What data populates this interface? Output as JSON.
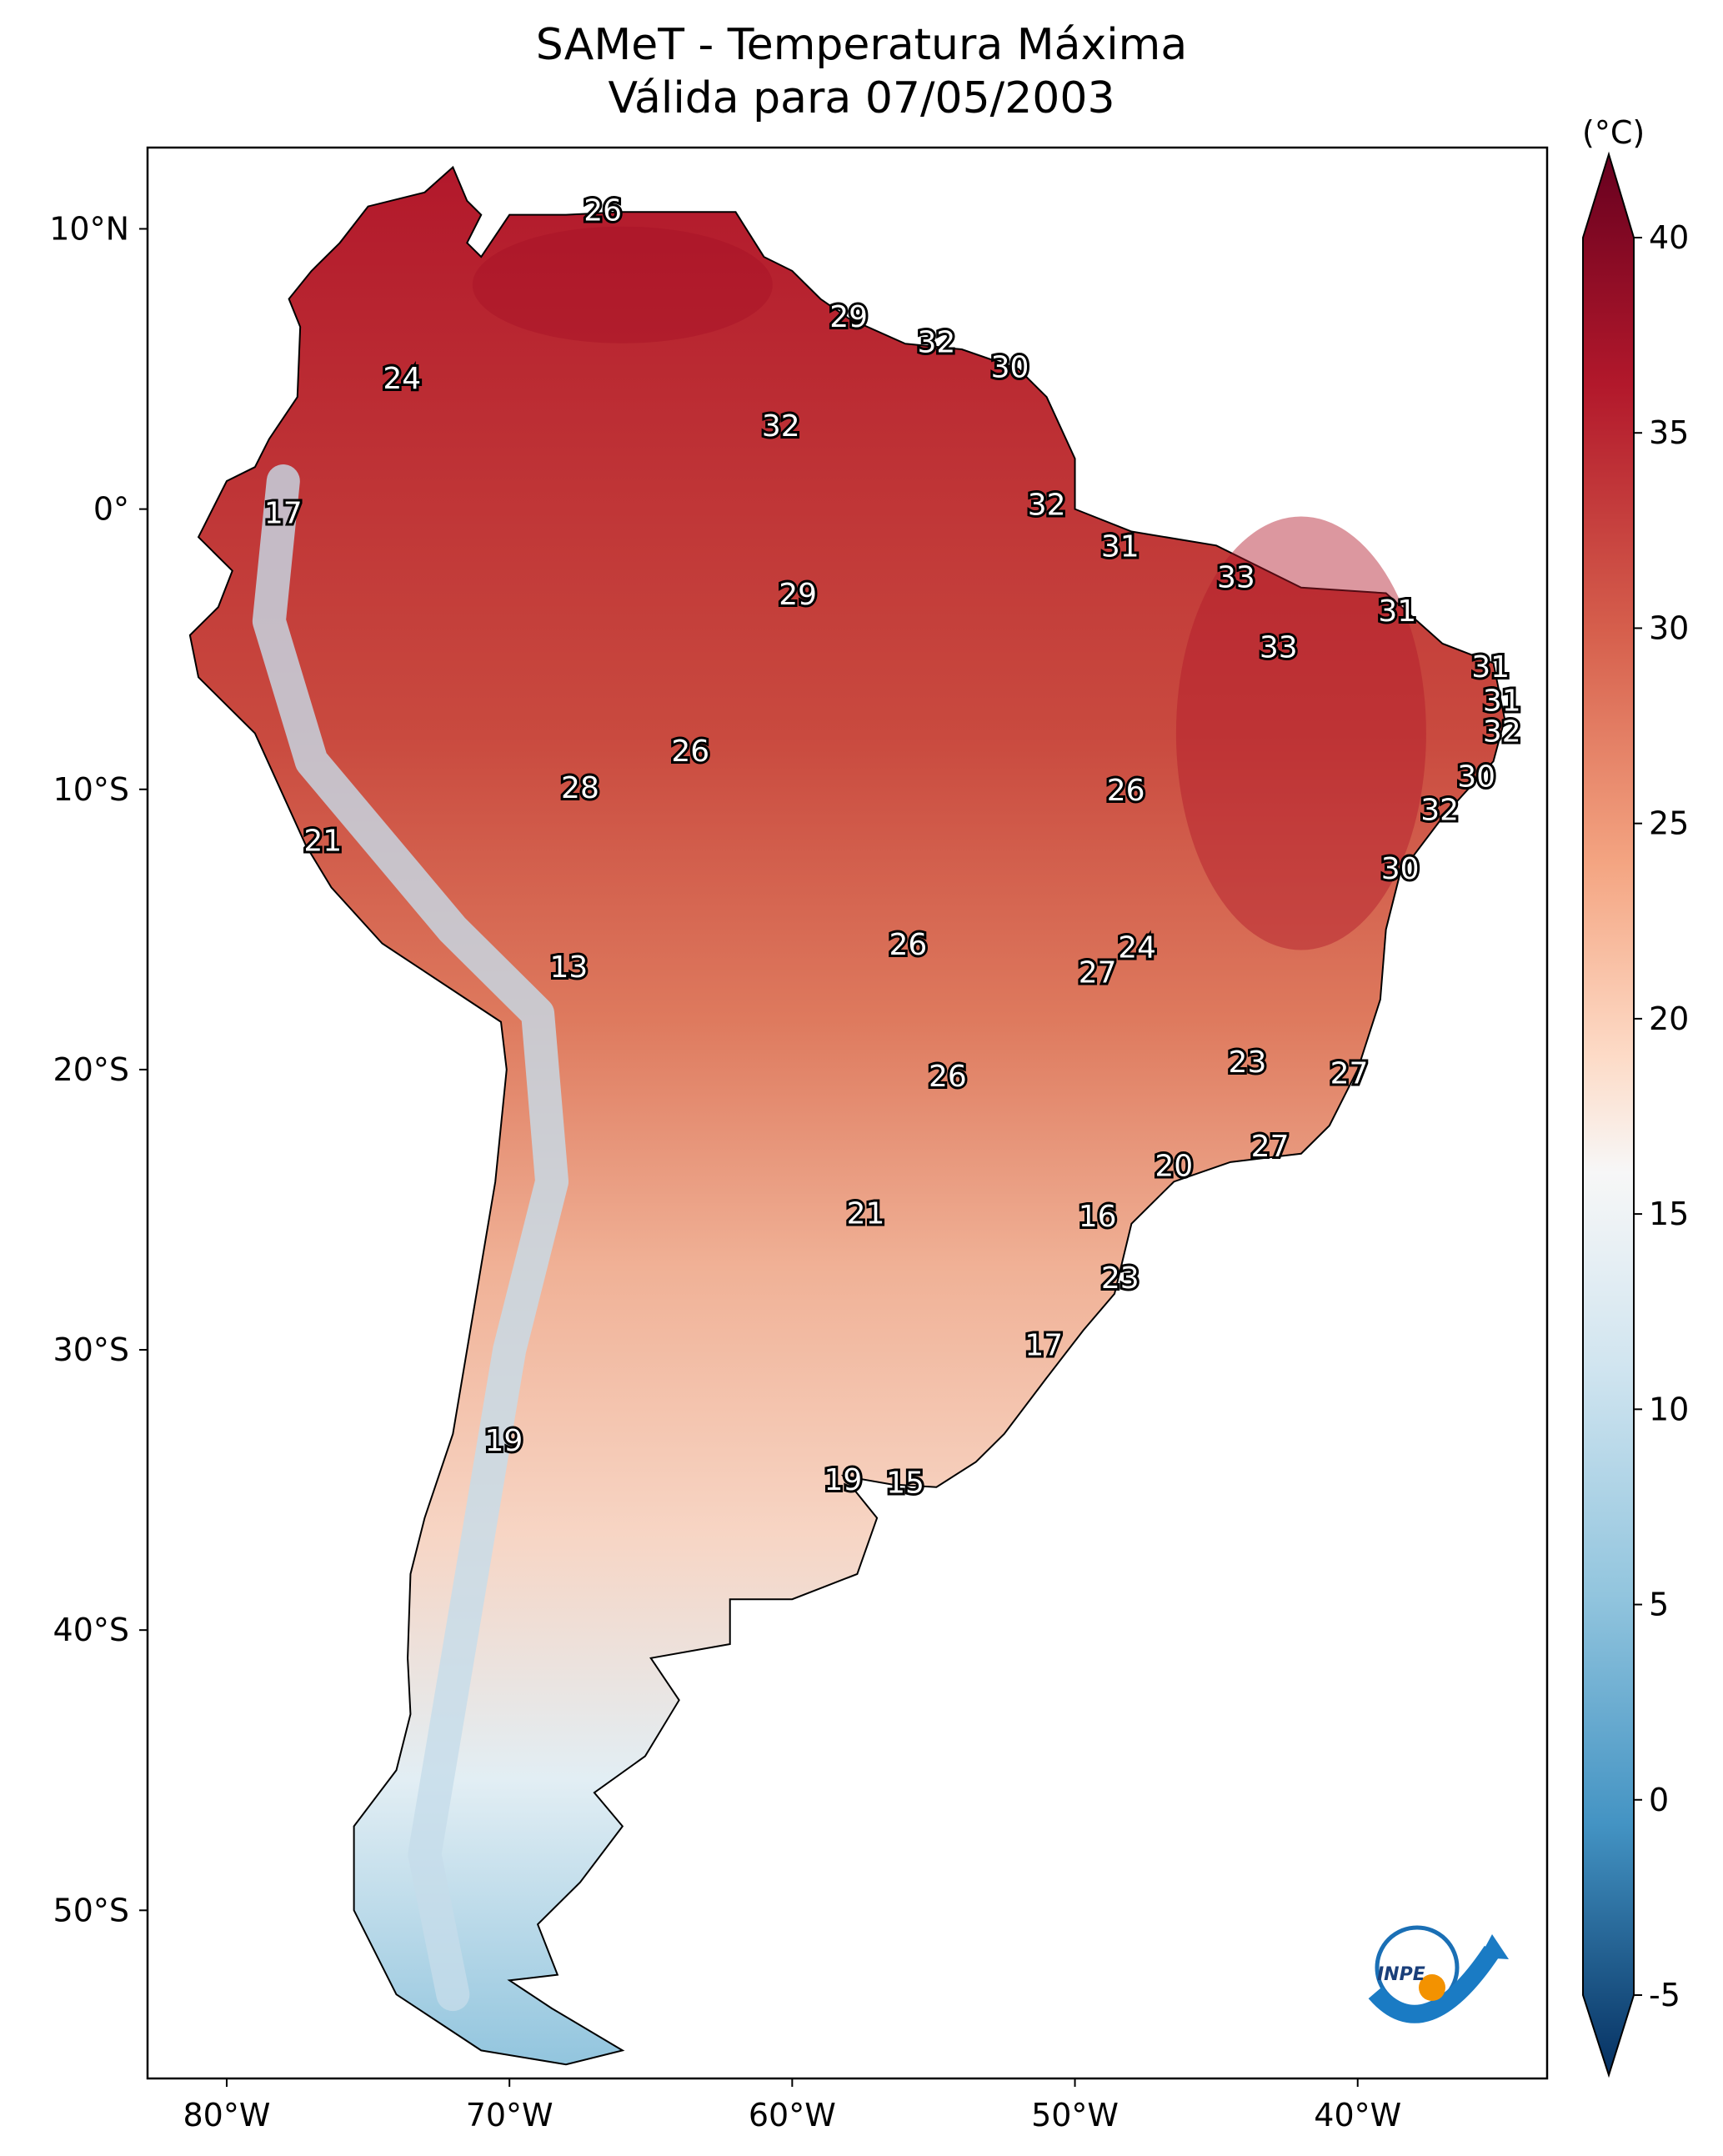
{
  "chart_data": {
    "type": "heatmap",
    "title": "SAMeT - Temperatura Máxima",
    "subtitle": "Válida para 07/05/2003",
    "colorbar_label": "(°C)",
    "colorbar_ticks": [
      "40",
      "35",
      "30",
      "25",
      "20",
      "15",
      "10",
      "5",
      "0",
      "-5"
    ],
    "colorbar_range": [
      -5,
      40
    ],
    "colormap": "RdBu_r",
    "lon_range": [
      -82.8,
      -33.3
    ],
    "lat_range": [
      -56,
      12.9
    ],
    "x_ticks": [
      {
        "lon": -80,
        "label": "80°W"
      },
      {
        "lon": -70,
        "label": "70°W"
      },
      {
        "lon": -60,
        "label": "60°W"
      },
      {
        "lon": -50,
        "label": "50°W"
      },
      {
        "lon": -40,
        "label": "40°W"
      }
    ],
    "y_ticks": [
      {
        "lat": 10,
        "label": "10°N"
      },
      {
        "lat": 0,
        "label": "0°"
      },
      {
        "lat": -10,
        "label": "10°S"
      },
      {
        "lat": -20,
        "label": "20°S"
      },
      {
        "lat": -30,
        "label": "30°S"
      },
      {
        "lat": -40,
        "label": "40°S"
      },
      {
        "lat": -50,
        "label": "50°S"
      }
    ],
    "annotations": [
      {
        "lon": -66.7,
        "lat": 10.6,
        "label": "26"
      },
      {
        "lon": -58.0,
        "lat": 6.8,
        "label": "29"
      },
      {
        "lon": -54.9,
        "lat": 5.9,
        "label": "32"
      },
      {
        "lon": -52.3,
        "lat": 5.0,
        "label": "30"
      },
      {
        "lon": -73.8,
        "lat": 4.6,
        "label": "24"
      },
      {
        "lon": -60.4,
        "lat": 2.9,
        "label": "32"
      },
      {
        "lon": -78.0,
        "lat": -0.2,
        "label": "17"
      },
      {
        "lon": -51.0,
        "lat": 0.1,
        "label": "32"
      },
      {
        "lon": -48.4,
        "lat": -1.4,
        "label": "31"
      },
      {
        "lon": -44.3,
        "lat": -2.5,
        "label": "33"
      },
      {
        "lon": -59.8,
        "lat": -3.1,
        "label": "29"
      },
      {
        "lon": -38.6,
        "lat": -3.7,
        "label": "31"
      },
      {
        "lon": -42.8,
        "lat": -5.0,
        "label": "33"
      },
      {
        "lon": -35.3,
        "lat": -5.7,
        "label": "31"
      },
      {
        "lon": -34.9,
        "lat": -6.9,
        "label": "31"
      },
      {
        "lon": -34.9,
        "lat": -8.0,
        "label": "32"
      },
      {
        "lon": -63.6,
        "lat": -8.7,
        "label": "26"
      },
      {
        "lon": -35.8,
        "lat": -9.6,
        "label": "30"
      },
      {
        "lon": -48.2,
        "lat": -10.1,
        "label": "26"
      },
      {
        "lon": -67.5,
        "lat": -10.0,
        "label": "28"
      },
      {
        "lon": -37.1,
        "lat": -10.8,
        "label": "32"
      },
      {
        "lon": -76.6,
        "lat": -11.9,
        "label": "21"
      },
      {
        "lon": -38.5,
        "lat": -12.9,
        "label": "30"
      },
      {
        "lon": -55.9,
        "lat": -15.6,
        "label": "26"
      },
      {
        "lon": -47.8,
        "lat": -15.7,
        "label": "24"
      },
      {
        "lon": -67.9,
        "lat": -16.4,
        "label": "13"
      },
      {
        "lon": -49.2,
        "lat": -16.6,
        "label": "27"
      },
      {
        "lon": -43.9,
        "lat": -19.8,
        "label": "23"
      },
      {
        "lon": -40.3,
        "lat": -20.2,
        "label": "27"
      },
      {
        "lon": -54.5,
        "lat": -20.3,
        "label": "26"
      },
      {
        "lon": -46.5,
        "lat": -23.5,
        "label": "20"
      },
      {
        "lon": -43.1,
        "lat": -22.8,
        "label": "27"
      },
      {
        "lon": -57.4,
        "lat": -25.2,
        "label": "21"
      },
      {
        "lon": -49.2,
        "lat": -25.3,
        "label": "16"
      },
      {
        "lon": -48.4,
        "lat": -27.5,
        "label": "23"
      },
      {
        "lon": -51.1,
        "lat": -29.9,
        "label": "17"
      },
      {
        "lon": -70.2,
        "lat": -33.3,
        "label": "19"
      },
      {
        "lon": -58.2,
        "lat": -34.7,
        "label": "19"
      },
      {
        "lon": -56.0,
        "lat": -34.8,
        "label": "15"
      }
    ],
    "logo_text": "INPE"
  }
}
